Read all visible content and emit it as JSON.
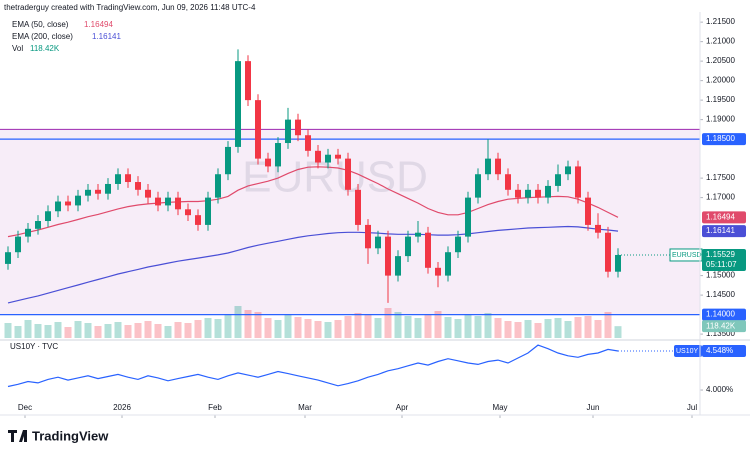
{
  "chart_data": {
    "type": "candlestick",
    "header": "thetraderguy created with TradingView.com, Jun 09, 2026 11:48 UTC-4",
    "watermark": "EURUSD",
    "brand": "TradingView",
    "up_color": "#089981",
    "down_color": "#f23645",
    "xlim": [
      -0.8,
      69.2
    ],
    "xticks": [
      {
        "value": 1.7,
        "label": "Dec"
      },
      {
        "value": 11.4,
        "label": "2026"
      },
      {
        "value": 20.7,
        "label": "Feb"
      },
      {
        "value": 29.7,
        "label": "Mar"
      },
      {
        "value": 39.4,
        "label": "Apr"
      },
      {
        "value": 49.2,
        "label": "May"
      },
      {
        "value": 58.5,
        "label": "Jun"
      },
      {
        "value": 68.4,
        "label": "Jul"
      }
    ],
    "ylim": [
      1.134,
      1.2176
    ],
    "yticks": [
      {
        "value": 1.215,
        "label": "1.21500"
      },
      {
        "value": 1.21,
        "label": "1.21000"
      },
      {
        "value": 1.205,
        "label": "1.20500"
      },
      {
        "value": 1.2,
        "label": "1.20000"
      },
      {
        "value": 1.195,
        "label": "1.19500"
      },
      {
        "value": 1.19,
        "label": "1.19000"
      },
      {
        "value": 1.175,
        "label": "1.17500"
      },
      {
        "value": 1.17,
        "label": "1.17000"
      },
      {
        "value": 1.15,
        "label": "1.15000"
      },
      {
        "value": 1.145,
        "label": "1.14500"
      },
      {
        "value": 1.135,
        "label": "1.13500"
      }
    ],
    "zone": {
      "top": 1.1875,
      "bottom": 1.14,
      "color": "#f3e5f5"
    },
    "levels": [
      {
        "value": 1.185,
        "label": "1.18500"
      },
      {
        "value": 1.14,
        "label": "1.14000"
      }
    ],
    "open": [
      1.153,
      1.156,
      1.16,
      1.162,
      1.164,
      1.1665,
      1.169,
      1.168,
      1.1705,
      1.172,
      1.171,
      1.1735,
      1.176,
      1.174,
      1.172,
      1.17,
      1.168,
      1.17,
      1.167,
      1.1655,
      1.163,
      1.17,
      1.176,
      1.183,
      1.205,
      1.195,
      1.18,
      1.178,
      1.184,
      1.19,
      1.186,
      1.182,
      1.179,
      1.181,
      1.18,
      1.172,
      1.163,
      1.157,
      1.16,
      1.15,
      1.155,
      1.16,
      1.161,
      1.152,
      1.15,
      1.156,
      1.16,
      1.17,
      1.176,
      1.18,
      1.176,
      1.172,
      1.17,
      1.172,
      1.17,
      1.173,
      1.176,
      1.178,
      1.17,
      1.163,
      1.161,
      1.151
    ],
    "high": [
      1.1575,
      1.1615,
      1.1635,
      1.1655,
      1.168,
      1.1705,
      1.1705,
      1.172,
      1.1735,
      1.1735,
      1.175,
      1.1775,
      1.1775,
      1.1755,
      1.1735,
      1.1715,
      1.1715,
      1.1715,
      1.1685,
      1.167,
      1.1715,
      1.1775,
      1.1845,
      1.208,
      1.2065,
      1.1965,
      1.1815,
      1.1855,
      1.193,
      1.1915,
      1.1875,
      1.1835,
      1.1825,
      1.1825,
      1.1815,
      1.1735,
      1.1645,
      1.1615,
      1.1615,
      1.1565,
      1.1615,
      1.164,
      1.1625,
      1.1535,
      1.1575,
      1.1615,
      1.1715,
      1.1775,
      1.185,
      1.1815,
      1.1775,
      1.1735,
      1.1735,
      1.1735,
      1.1745,
      1.1785,
      1.1795,
      1.1795,
      1.1715,
      1.166,
      1.1625,
      1.157
    ],
    "low": [
      1.1515,
      1.1545,
      1.1585,
      1.1605,
      1.1625,
      1.165,
      1.1665,
      1.1665,
      1.169,
      1.1695,
      1.1695,
      1.172,
      1.1725,
      1.1705,
      1.1685,
      1.1665,
      1.1665,
      1.1655,
      1.164,
      1.1615,
      1.1615,
      1.1685,
      1.1745,
      1.1815,
      1.1935,
      1.1785,
      1.1765,
      1.1765,
      1.1825,
      1.1845,
      1.1805,
      1.1775,
      1.1775,
      1.1785,
      1.1705,
      1.1615,
      1.153,
      1.1555,
      1.143,
      1.1485,
      1.1535,
      1.1585,
      1.1505,
      1.147,
      1.1485,
      1.1545,
      1.1585,
      1.1685,
      1.1745,
      1.1745,
      1.1705,
      1.1685,
      1.1685,
      1.1685,
      1.1685,
      1.1715,
      1.1745,
      1.1685,
      1.1615,
      1.1595,
      1.1495,
      1.1495
    ],
    "close": [
      1.156,
      1.16,
      1.162,
      1.164,
      1.1665,
      1.169,
      1.168,
      1.1705,
      1.172,
      1.171,
      1.1735,
      1.176,
      1.174,
      1.172,
      1.17,
      1.168,
      1.17,
      1.167,
      1.1655,
      1.163,
      1.17,
      1.176,
      1.183,
      1.205,
      1.195,
      1.18,
      1.178,
      1.184,
      1.19,
      1.186,
      1.182,
      1.179,
      1.181,
      1.18,
      1.172,
      1.163,
      1.157,
      1.16,
      1.15,
      1.155,
      1.16,
      1.161,
      1.152,
      1.15,
      1.156,
      1.16,
      1.17,
      1.176,
      1.18,
      1.176,
      1.172,
      1.17,
      1.172,
      1.17,
      1.173,
      1.176,
      1.178,
      1.17,
      1.163,
      1.161,
      1.151,
      1.15529
    ],
    "last": {
      "symbol": "EURUSD",
      "price": "1.15529",
      "countdown": "05:11:07"
    },
    "series": [
      {
        "name": "EMA (50, close)",
        "legend_value": "1.16494",
        "color": "#e04a6b",
        "values": [
          1.16,
          1.1605,
          1.1611,
          1.1617,
          1.1624,
          1.1631,
          1.1637,
          1.1644,
          1.1651,
          1.1657,
          1.1664,
          1.1671,
          1.1677,
          1.1681,
          1.1684,
          1.1686,
          1.1688,
          1.1689,
          1.169,
          1.169,
          1.1692,
          1.1696,
          1.1703,
          1.1719,
          1.173,
          1.1736,
          1.1742,
          1.175,
          1.1762,
          1.1772,
          1.1778,
          1.1779,
          1.1778,
          1.1776,
          1.177,
          1.176,
          1.1748,
          1.1736,
          1.1722,
          1.171,
          1.1698,
          1.1686,
          1.1672,
          1.1662,
          1.1656,
          1.1656,
          1.1662,
          1.1672,
          1.1682,
          1.169,
          1.1696,
          1.1698,
          1.17,
          1.1701,
          1.1702,
          1.1703,
          1.1702,
          1.1696,
          1.1686,
          1.1675,
          1.1662,
          1.16494
        ]
      },
      {
        "name": "EMA (200, close)",
        "legend_value": "1.16141",
        "color": "#4a4fd6",
        "values": [
          1.143,
          1.1436,
          1.1442,
          1.1448,
          1.1455,
          1.1462,
          1.1469,
          1.1476,
          1.1483,
          1.149,
          1.1497,
          1.1504,
          1.151,
          1.1516,
          1.1522,
          1.1527,
          1.1532,
          1.1537,
          1.1541,
          1.1545,
          1.1549,
          1.1553,
          1.1558,
          1.1565,
          1.1572,
          1.1578,
          1.1583,
          1.1588,
          1.1593,
          1.1598,
          1.1602,
          1.1605,
          1.1608,
          1.161,
          1.1611,
          1.1611,
          1.161,
          1.1609,
          1.1607,
          1.1606,
          1.1606,
          1.1606,
          1.1605,
          1.1604,
          1.1604,
          1.1605,
          1.1607,
          1.161,
          1.1613,
          1.1616,
          1.1618,
          1.162,
          1.1622,
          1.1623,
          1.1624,
          1.1625,
          1.1626,
          1.1625,
          1.1622,
          1.1619,
          1.1617,
          1.16141
        ]
      }
    ],
    "volume": {
      "name": "Vol",
      "legend_value": "118.42K",
      "vlim": [
        0,
        500
      ],
      "values": [
        150,
        120,
        180,
        140,
        130,
        160,
        110,
        170,
        150,
        120,
        140,
        160,
        130,
        150,
        170,
        140,
        120,
        160,
        150,
        180,
        200,
        190,
        240,
        320,
        280,
        260,
        200,
        180,
        230,
        210,
        190,
        170,
        160,
        180,
        220,
        250,
        230,
        200,
        300,
        260,
        220,
        200,
        240,
        270,
        210,
        190,
        230,
        220,
        250,
        200,
        170,
        160,
        180,
        150,
        190,
        200,
        170,
        210,
        220,
        180,
        260,
        118.42
      ]
    },
    "us10y": {
      "title": "US10Y · TVC",
      "symbol": "US10Y",
      "value_label": "4.548%",
      "color": "#2962ff",
      "ylim": [
        3.72,
        4.66
      ],
      "yticks": [
        {
          "value": 4.0,
          "label": "4.000%"
        }
      ],
      "values": [
        4.05,
        4.08,
        4.12,
        4.1,
        4.15,
        4.18,
        4.14,
        4.17,
        4.2,
        4.16,
        4.19,
        4.22,
        4.18,
        4.15,
        4.2,
        4.17,
        4.13,
        4.16,
        4.19,
        4.22,
        4.18,
        4.15,
        4.2,
        4.24,
        4.21,
        4.18,
        4.22,
        4.26,
        4.23,
        4.2,
        4.17,
        4.14,
        4.1,
        4.06,
        4.09,
        4.13,
        4.18,
        4.22,
        4.27,
        4.3,
        4.34,
        4.38,
        4.35,
        4.4,
        4.44,
        4.41,
        4.38,
        4.36,
        4.4,
        4.42,
        4.38,
        4.45,
        4.52,
        4.63,
        4.58,
        4.52,
        4.48,
        4.46,
        4.5,
        4.52,
        4.57,
        4.548
      ]
    }
  }
}
